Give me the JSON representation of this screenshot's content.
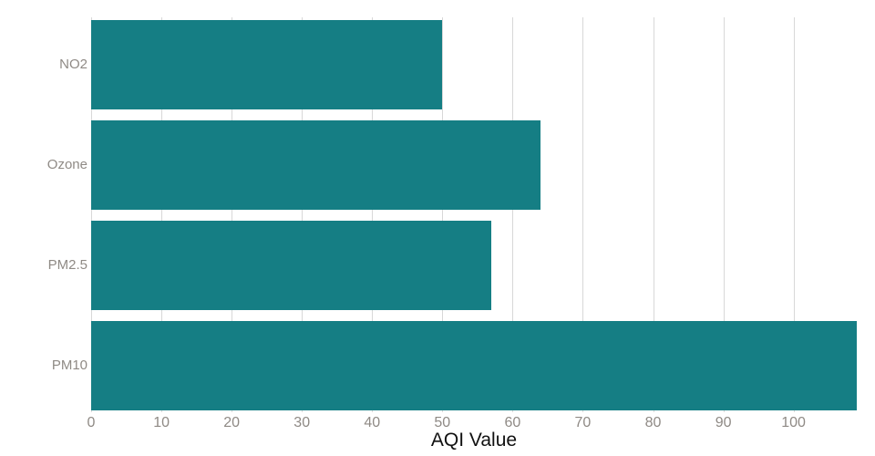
{
  "chart_data": {
    "type": "bar",
    "orientation": "horizontal",
    "title": "",
    "xlabel": "AQI Value",
    "ylabel": "",
    "categories": [
      "NO2",
      "Ozone",
      "PM2.5",
      "PM10"
    ],
    "values": [
      50,
      64,
      57,
      109
    ],
    "xlim": [
      0,
      109
    ],
    "xticks": [
      0,
      10,
      20,
      30,
      40,
      50,
      60,
      70,
      80,
      90,
      100
    ],
    "grid": true,
    "legend_position": "none",
    "bar_color": "#157e84",
    "gridline_color": "#d8d8d8",
    "tick_label_color": "#8f8a85",
    "axis_title_color": "#111111",
    "background_color": "#ffffff"
  }
}
